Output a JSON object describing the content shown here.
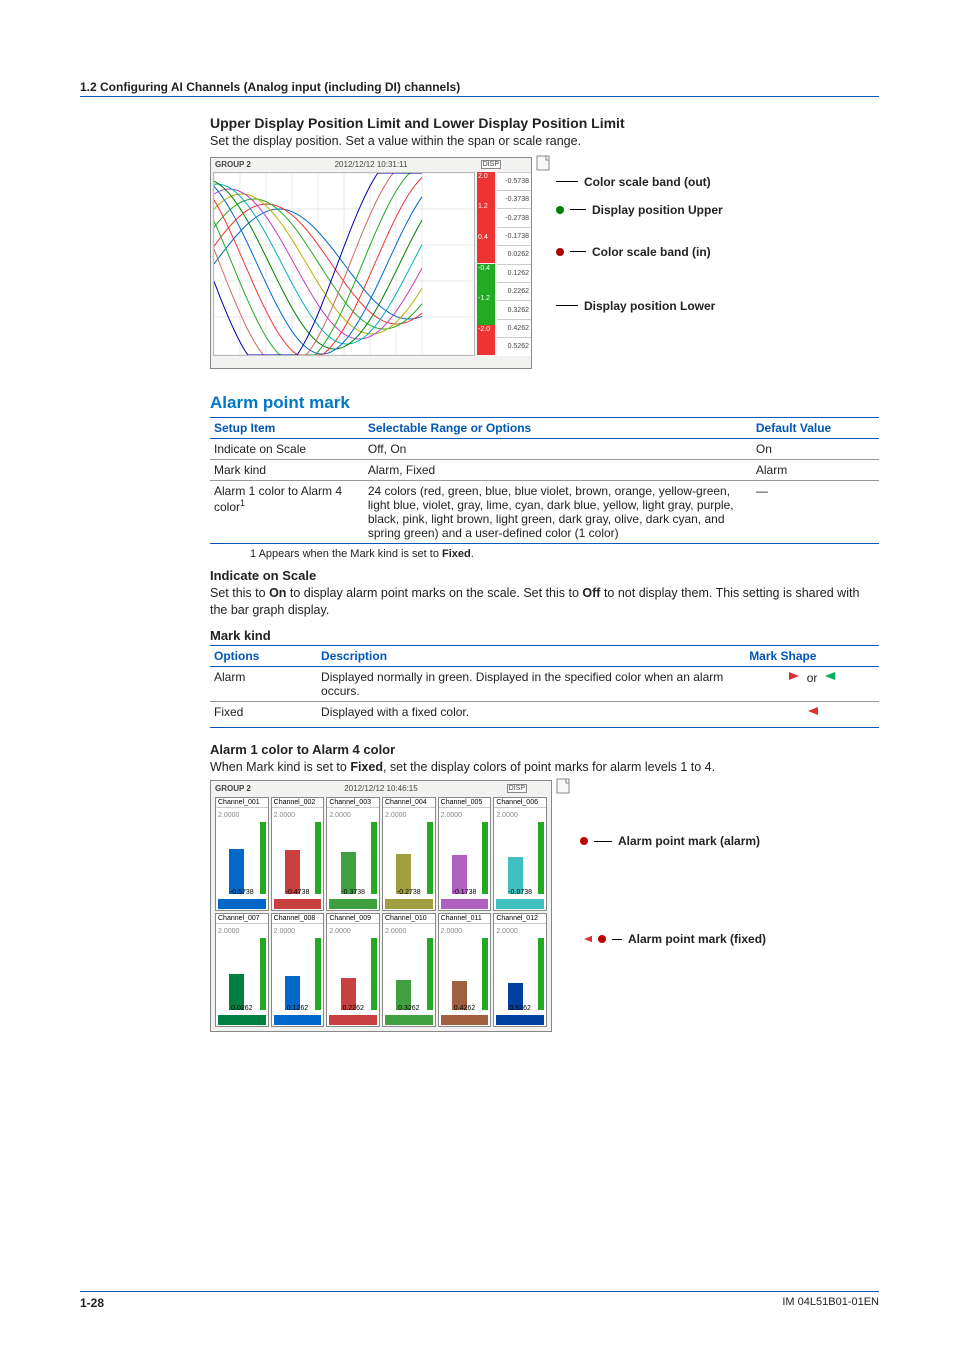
{
  "breadcrumb": "1.2  Configuring AI Channels (Analog input (including DI) channels)",
  "upper_heading": "Upper Display Position Limit and Lower Display Position Limit",
  "upper_body": "Set the display position. Set a value within the span or scale range.",
  "screenshot1": {
    "group": "GROUP 2",
    "datetime": "2012/12/12 10:31:11",
    "color_out": "#b00000",
    "color_upper": "#008000",
    "color_in": "#b00000",
    "color_lower": "#008000",
    "anno_color_out": "Color scale band (out)",
    "anno_upper": "Display position Upper",
    "anno_color_in": "Color scale band (in)",
    "anno_lower": "Display position Lower",
    "scale_labels": [
      "2.0",
      "1.2",
      "0.4",
      "-0.4",
      "-1.2",
      "-2.0"
    ],
    "scale_colors": [
      "#e33",
      "#e33",
      "#e33",
      "#2a2",
      "#2a2",
      "#e33"
    ],
    "side_vals": [
      "-0.5738",
      "-0.3738",
      "-0.2738",
      "-0.1738",
      "0.0262",
      "0.1262",
      "0.2262",
      "0.3262",
      "0.4262",
      "0.5262"
    ],
    "wave_colors": [
      "#0068c8",
      "#e33",
      "#2a2",
      "#b8b000",
      "#c040c0",
      "#00b0c0",
      "#008000",
      "#0068c8",
      "#e33",
      "#2a2",
      "#c66",
      "#00a"
    ]
  },
  "section_title": "Alarm point mark",
  "setup_table": {
    "headers": [
      "Setup Item",
      "Selectable Range or Options",
      "Default Value"
    ],
    "rows": [
      {
        "c0": "Indicate on Scale",
        "c1": "Off, On",
        "c2": "On"
      },
      {
        "c0": "Mark kind",
        "c1": "Alarm, Fixed",
        "c2": "Alarm"
      },
      {
        "c0": "Alarm 1 color to Alarm 4 color",
        "sup": "1",
        "c1": "24 colors (red, green, blue, blue violet, brown, orange, yellow-green, light blue, violet, gray, lime, cyan, dark blue, yellow, light gray, purple, black, pink, light brown, light green, dark gray, olive, dark cyan, and spring green) and a user-defined color (1 color)",
        "c2": "—"
      }
    ],
    "footnote": "1  Appears when the Mark kind is set to ",
    "footnote_bold": "Fixed",
    "footnote_tail": "."
  },
  "indicate_heading": "Indicate on Scale",
  "indicate_body_a": "Set this to ",
  "indicate_on": "On",
  "indicate_body_b": " to display alarm point marks on the scale. Set this to ",
  "indicate_off": "Off",
  "indicate_body_c": " to not display them. This setting is shared with the bar graph display.",
  "markkind_heading": "Mark kind",
  "markkind_table": {
    "headers": [
      "Options",
      "Description",
      "Mark Shape"
    ],
    "rows": [
      {
        "c0": "Alarm",
        "c1": "Displayed normally in green. Displayed in the specified color when an alarm occurs.",
        "shape": "alarm"
      },
      {
        "c0": "Fixed",
        "c1": "Displayed with a fixed color.",
        "shape": "fixed"
      }
    ],
    "alarm_or": " or ",
    "alarm_color_a": "#e03030",
    "alarm_color_b": "#00b060",
    "fixed_color": "#e03030"
  },
  "alarmcolor_heading": "Alarm 1 color to Alarm 4 color",
  "alarmcolor_body_a": "When Mark kind is set to ",
  "alarmcolor_bold": "Fixed",
  "alarmcolor_body_b": ", set the display colors of point marks for alarm levels 1 to 4.",
  "screenshot2": {
    "group": "GROUP 2",
    "datetime": "2012/12/12 10:46:15",
    "anno_alarm": "Alarm point mark (alarm)",
    "anno_fixed": "Alarm point mark (fixed)",
    "color_alarm_dot": "#c00000",
    "color_fixed_dot": "#c00000",
    "row1_channels": [
      "Channel_001",
      "Channel_002",
      "Channel_003",
      "Channel_004",
      "Channel_005",
      "Channel_006"
    ],
    "row1_vals": [
      "-0.5738",
      "-0.4738",
      "-0.3738",
      "-0.2738",
      "-0.1738",
      "-0.0738"
    ],
    "row2_channels": [
      "Channel_007",
      "Channel_008",
      "Channel_009",
      "Channel_010",
      "Channel_011",
      "Channel_012"
    ],
    "row2_vals": [
      "0.0262",
      "0.1262",
      "0.2262",
      "0.3262",
      "0.4262",
      "0.5262"
    ],
    "bar_top": "2.0000",
    "bar_colors_row1": [
      "#0068c8",
      "#c84040",
      "#40a040",
      "#a0a040",
      "#b060c0",
      "#40c0c0"
    ],
    "bar_colors_row2": [
      "#008040",
      "#0068c8",
      "#c84040",
      "#40a040",
      "#a06040",
      "#0040a0"
    ],
    "bar_heights_row1": [
      0.63,
      0.61,
      0.58,
      0.56,
      0.54,
      0.52
    ],
    "bar_heights_row2": [
      0.5,
      0.47,
      0.44,
      0.42,
      0.4,
      0.38
    ]
  },
  "footer_page": "1-28",
  "footer_doc": "IM 04L51B01-01EN"
}
